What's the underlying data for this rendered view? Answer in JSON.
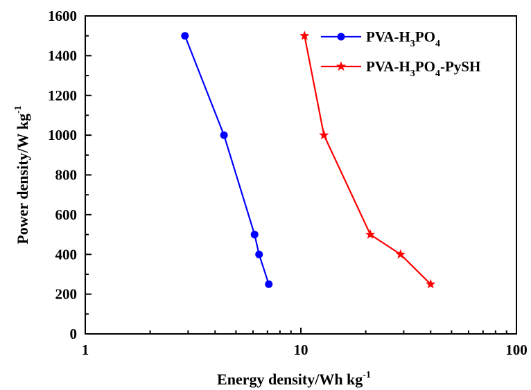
{
  "chart_data": {
    "type": "line",
    "x_scale": "log",
    "y_scale": "linear",
    "xlim": [
      1,
      100
    ],
    "ylim": [
      0,
      1600
    ],
    "x_ticks": [
      {
        "value": 1,
        "label": "1"
      },
      {
        "value": 10,
        "label": "10"
      },
      {
        "value": 100,
        "label": "100"
      }
    ],
    "y_ticks": [
      {
        "value": 0,
        "label": "0"
      },
      {
        "value": 200,
        "label": "200"
      },
      {
        "value": 400,
        "label": "400"
      },
      {
        "value": 600,
        "label": "600"
      },
      {
        "value": 800,
        "label": "800"
      },
      {
        "value": 1000,
        "label": "1000"
      },
      {
        "value": 1200,
        "label": "1200"
      },
      {
        "value": 1400,
        "label": "1400"
      },
      {
        "value": 1600,
        "label": "1600"
      }
    ],
    "xlabel": {
      "main": "Energy density/Wh kg",
      "sup": "-1"
    },
    "ylabel": {
      "main": "Power density/W kg",
      "sup": "-1"
    },
    "legend_position": "top-right",
    "series": [
      {
        "name_parts": [
          "PVA-H",
          "3",
          "PO",
          "4",
          ""
        ],
        "color": "#0000ff",
        "marker": "circle",
        "x": [
          2.9,
          4.4,
          6.1,
          6.4,
          7.1
        ],
        "y": [
          1500,
          1000,
          500,
          400,
          250
        ]
      },
      {
        "name_parts": [
          "PVA-H",
          "3",
          "PO",
          "4",
          "-PySH"
        ],
        "color": "#ff0000",
        "marker": "star",
        "x": [
          10.4,
          12.8,
          21.0,
          29.0,
          40.0
        ],
        "y": [
          1500,
          1000,
          500,
          400,
          250
        ]
      }
    ]
  }
}
